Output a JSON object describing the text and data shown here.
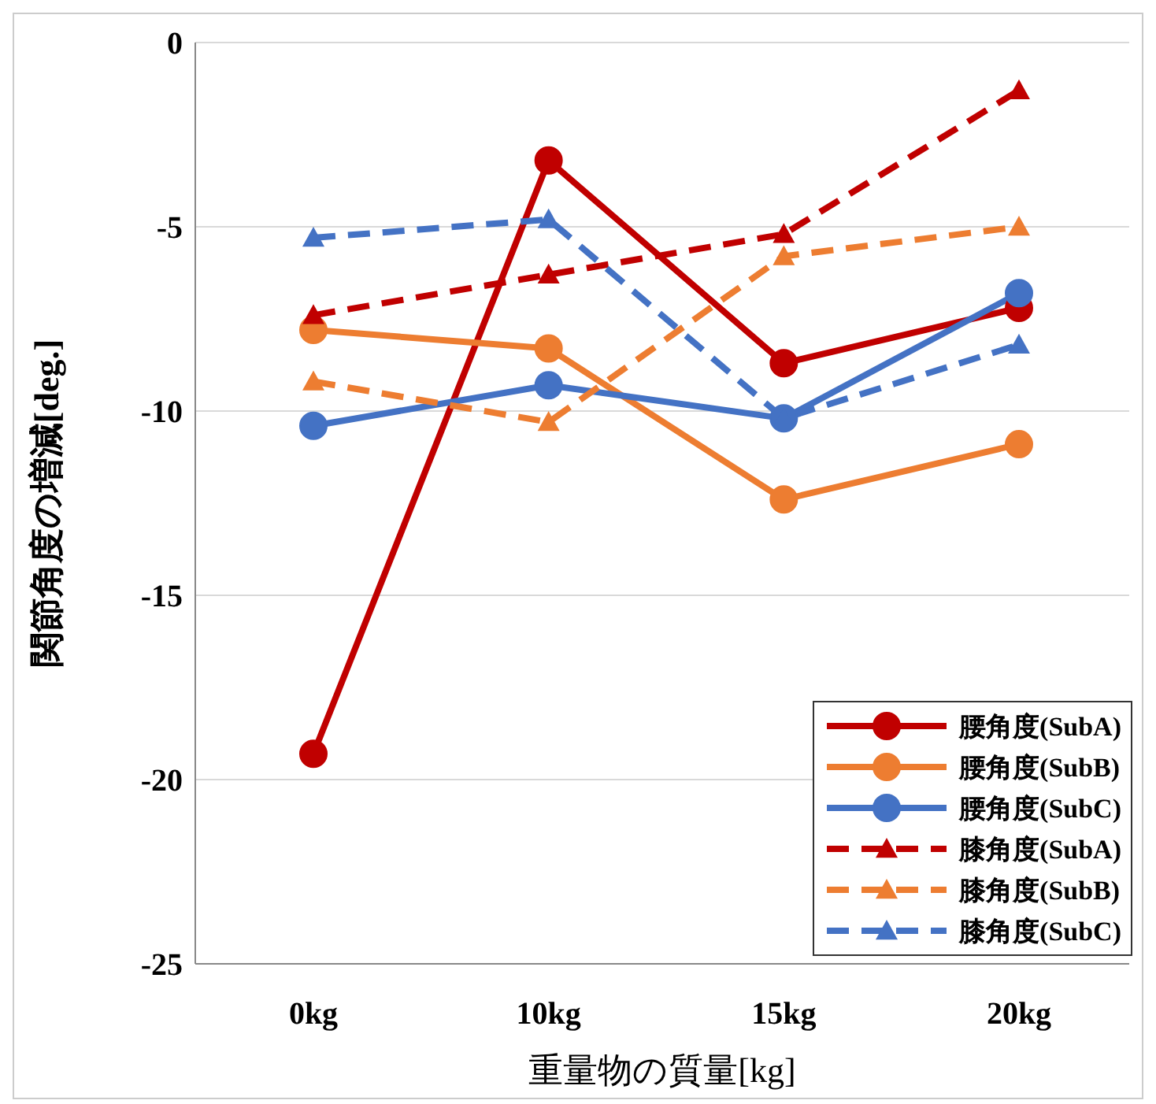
{
  "chart_data": {
    "type": "line",
    "xlabel": "重量物の質量[kg]",
    "ylabel": "関節角度の増減[deg.]",
    "categories": [
      "0kg",
      "10kg",
      "15kg",
      "20kg"
    ],
    "ylim": [
      -25,
      0
    ],
    "yticks": [
      -25,
      -20,
      -15,
      -10,
      -5,
      0
    ],
    "grid": "y",
    "legend": "bottom right",
    "series": [
      {
        "name": "腰角度(SubA)",
        "color": "#c00000",
        "marker": "circle",
        "line_style": "solid",
        "values": [
          -19.3,
          -3.2,
          -8.7,
          -7.2
        ]
      },
      {
        "name": "腰角度(SubB)",
        "color": "#ed7d31",
        "marker": "circle",
        "line_style": "solid",
        "values": [
          -7.8,
          -8.3,
          -12.4,
          -10.9
        ]
      },
      {
        "name": "腰角度(SubC)",
        "color": "#4472c4",
        "marker": "circle",
        "line_style": "solid",
        "values": [
          -10.4,
          -9.3,
          -10.2,
          -6.8
        ]
      },
      {
        "name": "膝角度(SubA)",
        "color": "#c00000",
        "marker": "triangle",
        "line_style": "dashed",
        "values": [
          -7.4,
          -6.3,
          -5.2,
          -1.3
        ]
      },
      {
        "name": "膝角度(SubB)",
        "color": "#ed7d31",
        "marker": "triangle",
        "line_style": "dashed",
        "values": [
          -9.2,
          -10.3,
          -5.8,
          -5.0
        ]
      },
      {
        "name": "膝角度(SubC)",
        "color": "#4472c4",
        "marker": "triangle",
        "line_style": "dashed",
        "values": [
          -5.3,
          -4.8,
          -10.2,
          -8.2
        ]
      }
    ]
  }
}
